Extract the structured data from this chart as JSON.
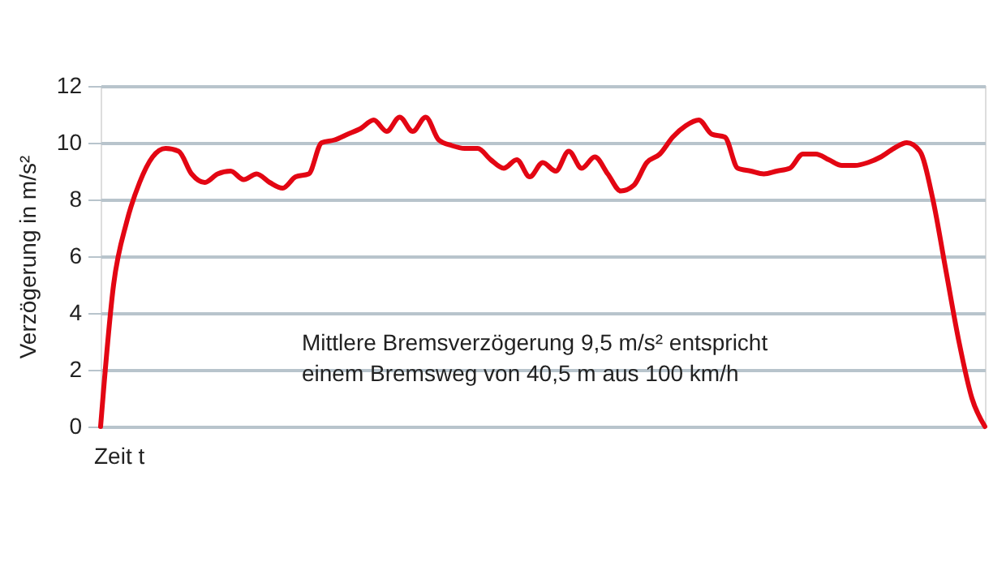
{
  "chart_data": {
    "type": "line",
    "xlabel": "Zeit t",
    "ylabel": "Verzögerung in m/s²",
    "categories": [
      null,
      null,
      null,
      null,
      null,
      null,
      null,
      null,
      null,
      null,
      null,
      null,
      null,
      null,
      null,
      null,
      null,
      null,
      null,
      null,
      null,
      null,
      null,
      null,
      null,
      null,
      null,
      null,
      null,
      null,
      null,
      null,
      null,
      null,
      null,
      null,
      null,
      null,
      null,
      null,
      null,
      null,
      null,
      null,
      null,
      null,
      null,
      null,
      null,
      null,
      null,
      null,
      null,
      null,
      null,
      null,
      null,
      null,
      null,
      null,
      null,
      null,
      null,
      null,
      null,
      null,
      null,
      null,
      null
    ],
    "series": [
      {
        "color": "#e30613",
        "values": [
          0,
          5.0,
          7.2,
          8.6,
          9.5,
          9.8,
          9.7,
          8.9,
          8.6,
          8.9,
          9.0,
          8.7,
          8.9,
          8.6,
          8.4,
          8.8,
          8.9,
          10.0,
          10.1,
          10.3,
          10.5,
          10.8,
          10.4,
          10.9,
          10.4,
          10.9,
          10.1,
          9.9,
          9.8,
          9.8,
          9.4,
          9.1,
          9.4,
          8.8,
          9.3,
          9.0,
          9.7,
          9.1,
          9.5,
          8.9,
          8.3,
          8.5,
          9.3,
          9.6,
          10.2,
          10.6,
          10.8,
          10.3,
          10.2,
          9.1,
          9.0,
          8.9,
          9.0,
          9.1,
          9.6,
          9.6,
          9.4,
          9.2,
          9.2,
          9.3,
          9.5,
          9.8,
          10.0,
          9.7,
          8.0,
          5.5,
          3.0,
          1.0,
          0
        ]
      }
    ],
    "ylim": [
      0,
      12
    ],
    "yticks": [
      0,
      2,
      4,
      6,
      8,
      10,
      12
    ],
    "grid": "y",
    "marker": "none",
    "line_style": "solid",
    "annotations": [
      "Mittlere Bremsverzögerung 9,5 m/s² entspricht\neinem Bremsweg von 40,5 m aus 100 km/h"
    ]
  }
}
